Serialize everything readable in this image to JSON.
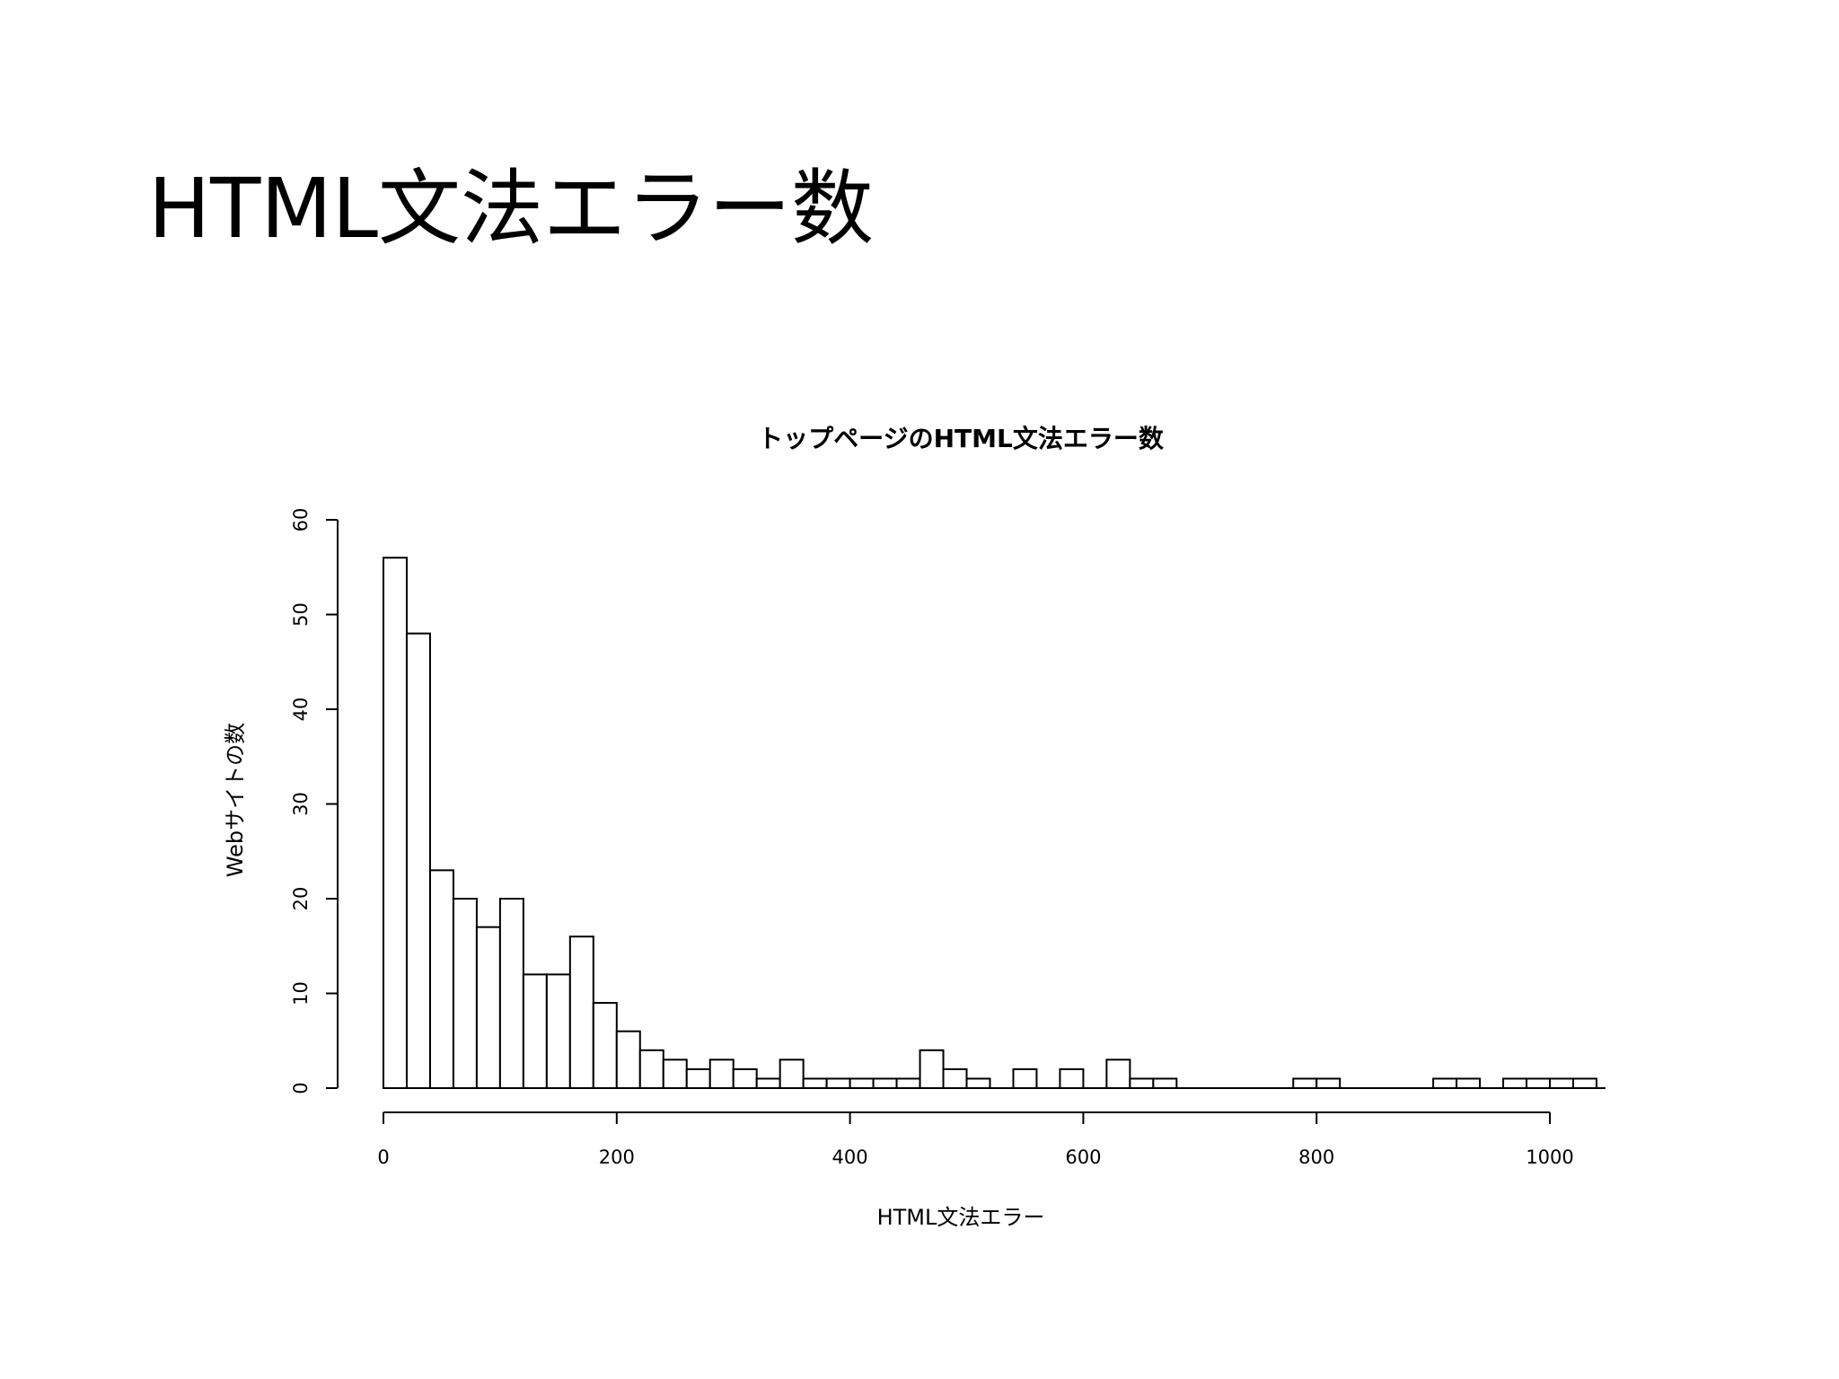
{
  "slide": {
    "title": "HTML文法エラー数"
  },
  "chart_data": {
    "type": "bar",
    "title": "トップページのHTML文法エラー数",
    "xlabel": "HTML文法エラー",
    "ylabel": "Webサイトの数",
    "bin_width": 20,
    "bin_start": 0,
    "counts": [
      56,
      48,
      23,
      20,
      17,
      20,
      12,
      12,
      16,
      9,
      6,
      4,
      3,
      2,
      3,
      2,
      1,
      3,
      1,
      1,
      1,
      1,
      1,
      4,
      2,
      1,
      0,
      2,
      0,
      2,
      0,
      3,
      1,
      1,
      0,
      0,
      0,
      0,
      0,
      1,
      1,
      0,
      0,
      0,
      0,
      1,
      1,
      0,
      1,
      1,
      1,
      1
    ],
    "xlim": [
      0,
      1040
    ],
    "ylim": [
      0,
      60
    ],
    "xticks": [
      0,
      200,
      400,
      600,
      800,
      1000
    ],
    "yticks": [
      0,
      10,
      20,
      30,
      40,
      50,
      60
    ],
    "xtick_labels": [
      "0",
      "200",
      "400",
      "600",
      "800",
      "1000"
    ],
    "ytick_labels": [
      "0",
      "10",
      "20",
      "30",
      "40",
      "50",
      "60"
    ]
  }
}
